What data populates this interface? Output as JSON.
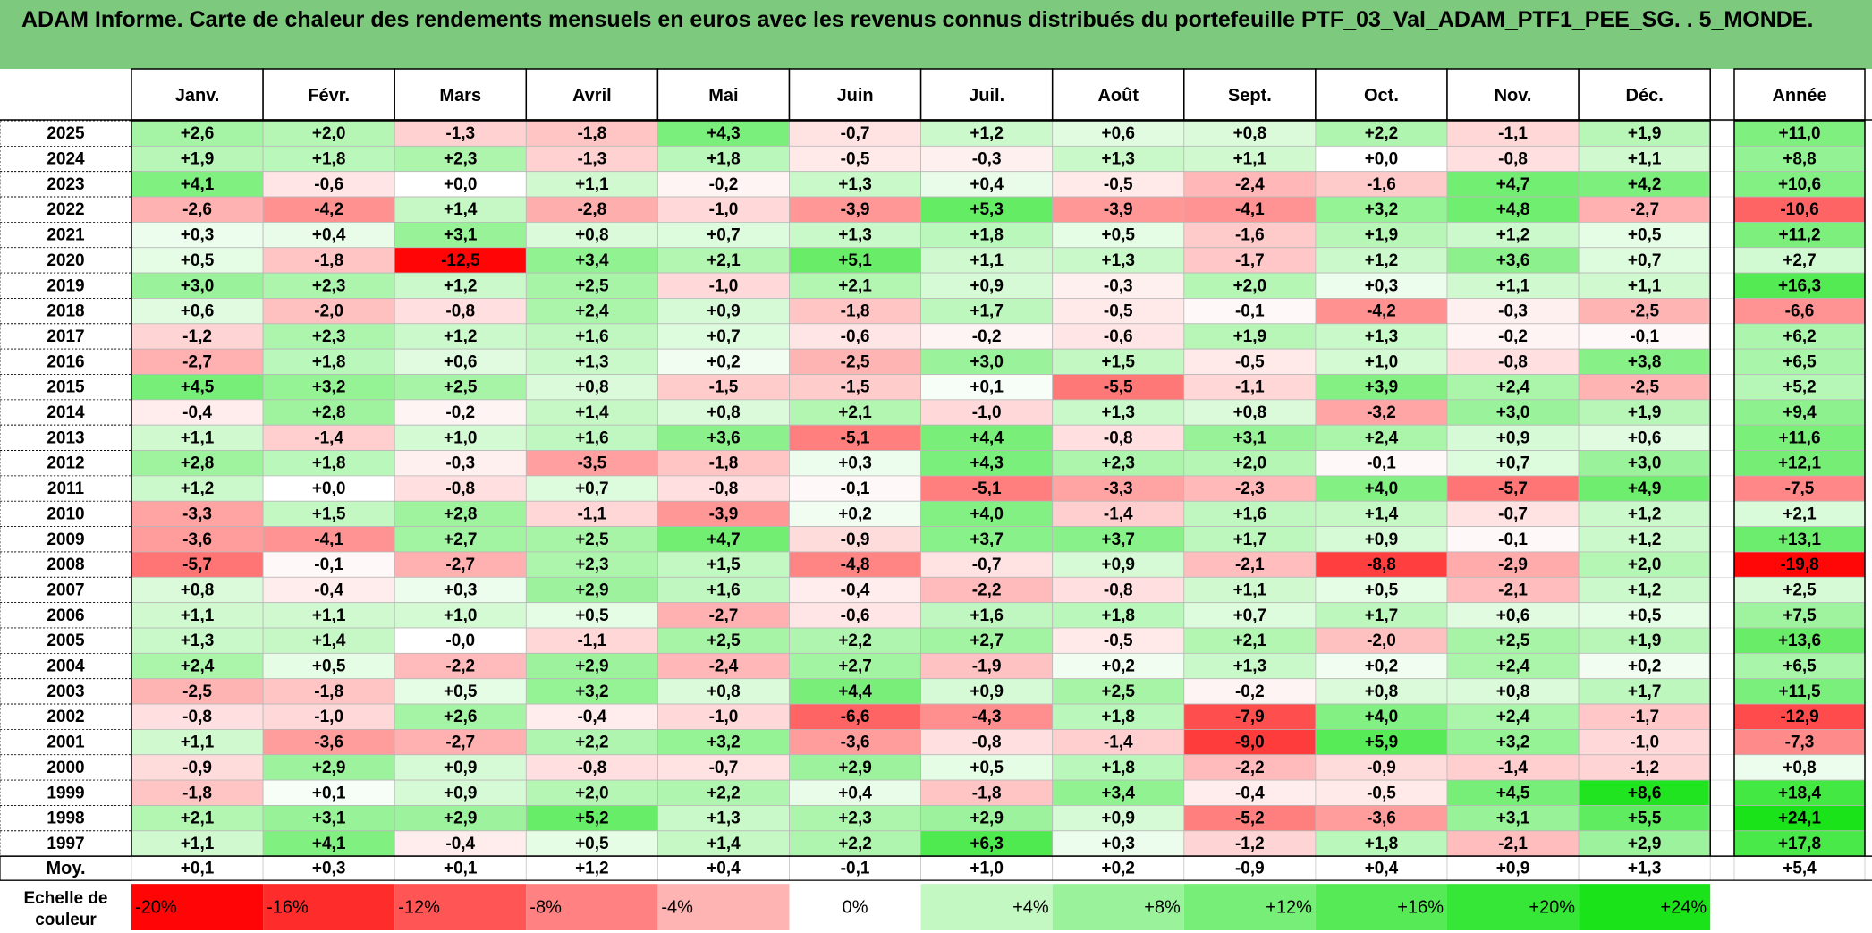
{
  "title": "ADAM Informe. Carte de chaleur des rendements mensuels en euros avec les revenus connus distribués du portefeuille PTF_03_Val_ADAM_PTF1_PEE_SG. . 5_MONDE.",
  "chart_data": {
    "type": "heatmap",
    "title": "ADAM Informe. Carte de chaleur des rendements mensuels en euros avec les revenus connus distribués du portefeuille PTF_03_Val_ADAM_PTF1_PEE_SG. . 5_MONDE.",
    "columns": [
      "Janv.",
      "Févr.",
      "Mars",
      "Avril",
      "Mai",
      "Juin",
      "Juil.",
      "Août",
      "Sept.",
      "Oct.",
      "Nov.",
      "Déc."
    ],
    "year_column": "Année",
    "rows": [
      {
        "year": "2025",
        "months": [
          "+2,6",
          "+2,0",
          "-1,3",
          "-1,8",
          "+4,3",
          "-0,7",
          "+1,2",
          "+0,6",
          "+0,8",
          "+2,2",
          "-1,1",
          "+1,9"
        ],
        "annual": "+11,0"
      },
      {
        "year": "2024",
        "months": [
          "+1,9",
          "+1,8",
          "+2,3",
          "-1,3",
          "+1,8",
          "-0,5",
          "-0,3",
          "+1,3",
          "+1,1",
          "+0,0",
          "-0,8",
          "+1,1"
        ],
        "annual": "+8,8"
      },
      {
        "year": "2023",
        "months": [
          "+4,1",
          "-0,6",
          "+0,0",
          "+1,1",
          "-0,2",
          "+1,3",
          "+0,4",
          "-0,5",
          "-2,4",
          "-1,6",
          "+4,7",
          "+4,2"
        ],
        "annual": "+10,6"
      },
      {
        "year": "2022",
        "months": [
          "-2,6",
          "-4,2",
          "+1,4",
          "-2,8",
          "-1,0",
          "-3,9",
          "+5,3",
          "-3,9",
          "-4,1",
          "+3,2",
          "+4,8",
          "-2,7"
        ],
        "annual": "-10,6"
      },
      {
        "year": "2021",
        "months": [
          "+0,3",
          "+0,4",
          "+3,1",
          "+0,8",
          "+0,7",
          "+1,3",
          "+1,8",
          "+0,5",
          "-1,6",
          "+1,9",
          "+1,2",
          "+0,5"
        ],
        "annual": "+11,2"
      },
      {
        "year": "2020",
        "months": [
          "+0,5",
          "-1,8",
          "-12,5",
          "+3,4",
          "+2,1",
          "+5,1",
          "+1,1",
          "+1,3",
          "-1,7",
          "+1,2",
          "+3,6",
          "+0,7"
        ],
        "annual": "+2,7"
      },
      {
        "year": "2019",
        "months": [
          "+3,0",
          "+2,3",
          "+1,2",
          "+2,5",
          "-1,0",
          "+2,1",
          "+0,9",
          "-0,3",
          "+2,0",
          "+0,3",
          "+1,1",
          "+1,1"
        ],
        "annual": "+16,3"
      },
      {
        "year": "2018",
        "months": [
          "+0,6",
          "-2,0",
          "-0,8",
          "+2,4",
          "+0,9",
          "-1,8",
          "+1,7",
          "-0,5",
          "-0,1",
          "-4,2",
          "-0,3",
          "-2,5"
        ],
        "annual": "-6,6"
      },
      {
        "year": "2017",
        "months": [
          "-1,2",
          "+2,3",
          "+1,2",
          "+1,6",
          "+0,7",
          "-0,6",
          "-0,2",
          "-0,6",
          "+1,9",
          "+1,3",
          "-0,2",
          "-0,1"
        ],
        "annual": "+6,2"
      },
      {
        "year": "2016",
        "months": [
          "-2,7",
          "+1,8",
          "+0,6",
          "+1,3",
          "+0,2",
          "-2,5",
          "+3,0",
          "+1,5",
          "-0,5",
          "+1,0",
          "-0,8",
          "+3,8"
        ],
        "annual": "+6,5"
      },
      {
        "year": "2015",
        "months": [
          "+4,5",
          "+3,2",
          "+2,5",
          "+0,8",
          "-1,5",
          "-1,5",
          "+0,1",
          "-5,5",
          "-1,1",
          "+3,9",
          "+2,4",
          "-2,5"
        ],
        "annual": "+5,2"
      },
      {
        "year": "2014",
        "months": [
          "-0,4",
          "+2,8",
          "-0,2",
          "+1,4",
          "+0,8",
          "+2,1",
          "-1,0",
          "+1,3",
          "+0,8",
          "-3,2",
          "+3,0",
          "+1,9"
        ],
        "annual": "+9,4"
      },
      {
        "year": "2013",
        "months": [
          "+1,1",
          "-1,4",
          "+1,0",
          "+1,6",
          "+3,6",
          "-5,1",
          "+4,4",
          "-0,8",
          "+3,1",
          "+2,4",
          "+0,9",
          "+0,6"
        ],
        "annual": "+11,6"
      },
      {
        "year": "2012",
        "months": [
          "+2,8",
          "+1,8",
          "-0,3",
          "-3,5",
          "-1,8",
          "+0,3",
          "+4,3",
          "+2,3",
          "+2,0",
          "-0,1",
          "+0,7",
          "+3,0"
        ],
        "annual": "+12,1"
      },
      {
        "year": "2011",
        "months": [
          "+1,2",
          "+0,0",
          "-0,8",
          "+0,7",
          "-0,8",
          "-0,1",
          "-5,1",
          "-3,3",
          "-2,3",
          "+4,0",
          "-5,7",
          "+4,9"
        ],
        "annual": "-7,5"
      },
      {
        "year": "2010",
        "months": [
          "-3,3",
          "+1,5",
          "+2,8",
          "-1,1",
          "-3,9",
          "+0,2",
          "+4,0",
          "-1,4",
          "+1,6",
          "+1,4",
          "-0,7",
          "+1,2"
        ],
        "annual": "+2,1"
      },
      {
        "year": "2009",
        "months": [
          "-3,6",
          "-4,1",
          "+2,7",
          "+2,5",
          "+4,7",
          "-0,9",
          "+3,7",
          "+3,7",
          "+1,7",
          "+0,9",
          "-0,1",
          "+1,2"
        ],
        "annual": "+13,1"
      },
      {
        "year": "2008",
        "months": [
          "-5,7",
          "-0,1",
          "-2,7",
          "+2,3",
          "+1,5",
          "-4,8",
          "-0,7",
          "+0,9",
          "-2,1",
          "-8,8",
          "-2,9",
          "+2,0"
        ],
        "annual": "-19,8"
      },
      {
        "year": "2007",
        "months": [
          "+0,8",
          "-0,4",
          "+0,3",
          "+2,9",
          "+1,6",
          "-0,4",
          "-2,2",
          "-0,8",
          "+1,1",
          "+0,5",
          "-2,1",
          "+1,2"
        ],
        "annual": "+2,5"
      },
      {
        "year": "2006",
        "months": [
          "+1,1",
          "+1,1",
          "+1,0",
          "+0,5",
          "-2,7",
          "-0,6",
          "+1,6",
          "+1,8",
          "+0,7",
          "+1,7",
          "+0,6",
          "+0,5"
        ],
        "annual": "+7,5"
      },
      {
        "year": "2005",
        "months": [
          "+1,3",
          "+1,4",
          "-0,0",
          "-1,1",
          "+2,5",
          "+2,2",
          "+2,7",
          "-0,5",
          "+2,1",
          "-2,0",
          "+2,5",
          "+1,9"
        ],
        "annual": "+13,6"
      },
      {
        "year": "2004",
        "months": [
          "+2,4",
          "+0,5",
          "-2,2",
          "+2,9",
          "-2,4",
          "+2,7",
          "-1,9",
          "+0,2",
          "+1,3",
          "+0,2",
          "+2,4",
          "+0,2"
        ],
        "annual": "+6,5"
      },
      {
        "year": "2003",
        "months": [
          "-2,5",
          "-1,8",
          "+0,5",
          "+3,2",
          "+0,8",
          "+4,4",
          "+0,9",
          "+2,5",
          "-0,2",
          "+0,8",
          "+0,8",
          "+1,7"
        ],
        "annual": "+11,5"
      },
      {
        "year": "2002",
        "months": [
          "-0,8",
          "-1,0",
          "+2,6",
          "-0,4",
          "-1,0",
          "-6,6",
          "-4,3",
          "+1,8",
          "-7,9",
          "+4,0",
          "+2,4",
          "-1,7"
        ],
        "annual": "-12,9"
      },
      {
        "year": "2001",
        "months": [
          "+1,1",
          "-3,6",
          "-2,7",
          "+2,2",
          "+3,2",
          "-3,6",
          "-0,8",
          "-1,4",
          "-9,0",
          "+5,9",
          "+3,2",
          "-1,0"
        ],
        "annual": "-7,3"
      },
      {
        "year": "2000",
        "months": [
          "-0,9",
          "+2,9",
          "+0,9",
          "-0,8",
          "-0,7",
          "+2,9",
          "+0,5",
          "+1,8",
          "-2,2",
          "-0,9",
          "-1,4",
          "-1,2"
        ],
        "annual": "+0,8"
      },
      {
        "year": "1999",
        "months": [
          "-1,8",
          "+0,1",
          "+0,9",
          "+2,0",
          "+2,2",
          "+0,4",
          "-1,8",
          "+3,4",
          "-0,4",
          "-0,5",
          "+4,5",
          "+8,6"
        ],
        "annual": "+18,4"
      },
      {
        "year": "1998",
        "months": [
          "+2,1",
          "+3,1",
          "+2,9",
          "+5,2",
          "+1,3",
          "+2,3",
          "+2,9",
          "+0,9",
          "-5,2",
          "-3,6",
          "+3,1",
          "+5,5"
        ],
        "annual": "+24,1"
      },
      {
        "year": "1997",
        "months": [
          "+1,1",
          "+4,1",
          "-0,4",
          "+0,5",
          "+1,4",
          "+2,2",
          "+6,3",
          "+0,3",
          "-1,2",
          "+1,8",
          "-2,1",
          "+2,9"
        ],
        "annual": "+17,8"
      }
    ],
    "average_row": {
      "label": "Moy.",
      "months": [
        "+0,1",
        "+0,3",
        "+0,1",
        "+1,2",
        "+0,4",
        "-0,1",
        "+1,0",
        "+0,2",
        "-0,9",
        "+0,4",
        "+0,9",
        "+1,3"
      ],
      "annual": "+5,4"
    },
    "color_scale": {
      "label": "Echelle de couleur",
      "steps": [
        "-20%",
        "-16%",
        "-12%",
        "-8%",
        "-4%",
        "0%",
        "+4%",
        "+8%",
        "+12%",
        "+16%",
        "+20%",
        "+24%"
      ]
    },
    "colors": {
      "title_background": "#7dc97d",
      "negative_max": "#ff0000",
      "neutral": "#ffffff",
      "positive_max": "#00e000"
    }
  }
}
